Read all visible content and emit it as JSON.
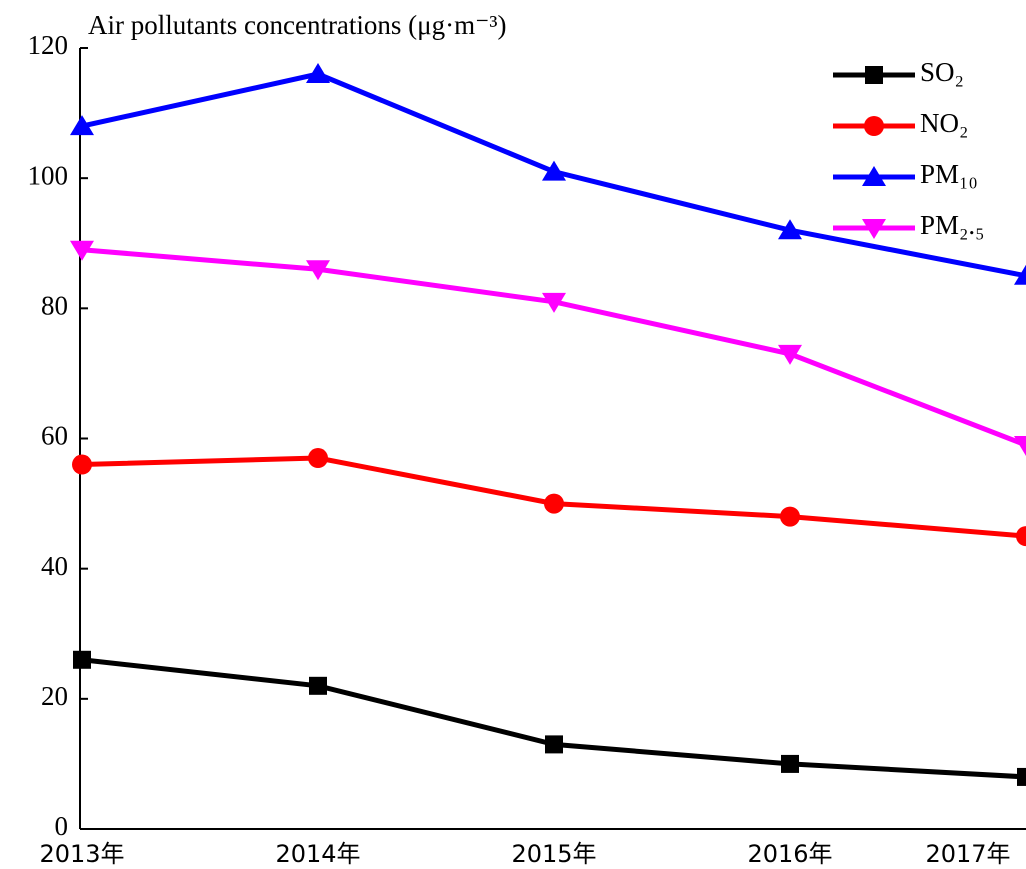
{
  "chart_data": {
    "type": "line",
    "title": "Air pollutants concentrations (μg·m⁻³)",
    "categories": [
      "2013年",
      "2014年",
      "2015年",
      "2016年",
      "2017年"
    ],
    "series": [
      {
        "name": "SO₂",
        "color": "#000000",
        "marker": "square",
        "values": [
          26,
          22,
          13,
          10,
          8
        ]
      },
      {
        "name": "NO₂",
        "color": "#ff0000",
        "marker": "circle",
        "values": [
          56,
          57,
          50,
          48,
          45
        ]
      },
      {
        "name": "PM₁₀",
        "color": "#0000ff",
        "marker": "triangle-up",
        "values": [
          108,
          116,
          101,
          92,
          85
        ]
      },
      {
        "name": "PM₂.₅",
        "color": "#ff00ff",
        "marker": "triangle-down",
        "values": [
          89,
          86,
          81,
          73,
          59
        ]
      }
    ],
    "ylim": [
      0,
      120
    ],
    "yticks": [
      0,
      20,
      40,
      60,
      80,
      100,
      120
    ],
    "legend": "upper right",
    "grid": false
  }
}
